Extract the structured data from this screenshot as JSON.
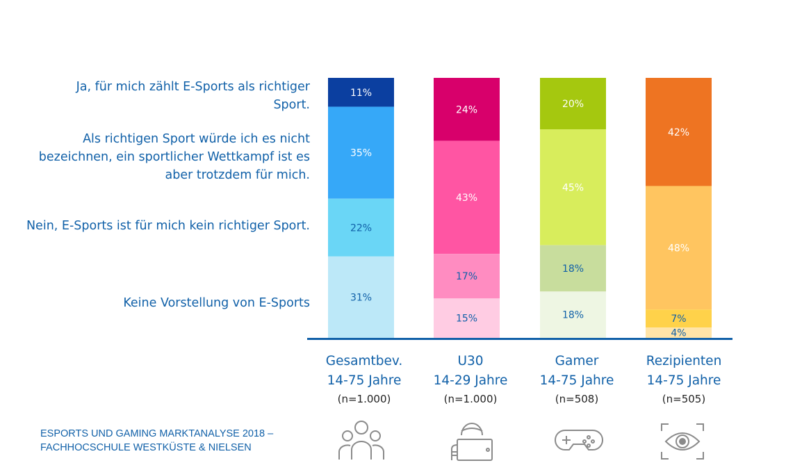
{
  "chart_data": {
    "type": "bar",
    "stacked": true,
    "ylim": [
      0,
      100
    ],
    "legend_position": "left",
    "categories": [
      {
        "name": "Gesamtbev.",
        "age": "14-75 Jahre",
        "n": "(n=1.000)"
      },
      {
        "name": "U30",
        "age": "14-29 Jahre",
        "n": "(n=1.000)"
      },
      {
        "name": "Gamer",
        "age": "14-75 Jahre",
        "n": "(n=508)"
      },
      {
        "name": "Rezipienten",
        "age": "14-75 Jahre",
        "n": "(n=505)"
      }
    ],
    "series": [
      {
        "name": "Ja, für mich zählt E-Sports als richtiger Sport.",
        "values": [
          11,
          24,
          20,
          42
        ],
        "labels": [
          "11%",
          "24%",
          "20%",
          "42%"
        ]
      },
      {
        "name": "Als richtigen Sport würde ich es nicht bezeichnen, ein sportlicher Wettkampf ist es aber trotzdem für mich.",
        "values": [
          35,
          43,
          45,
          48
        ],
        "labels": [
          "35%",
          "43%",
          "45%",
          "48%"
        ]
      },
      {
        "name": "Nein, E-Sports ist für mich kein richtiger Sport.",
        "values": [
          22,
          17,
          18,
          7
        ],
        "labels": [
          "22%",
          "17%",
          "18%",
          "7%"
        ]
      },
      {
        "name": "Keine Vorstellung von E-Sports",
        "values": [
          31,
          15,
          18,
          4
        ],
        "labels": [
          "31%",
          "15%",
          "18%",
          "4%"
        ]
      }
    ],
    "colors": [
      [
        "#0B3FA0",
        "#36A8F8",
        "#6AD6F6",
        "#BCE8F8"
      ],
      [
        "#D8006B",
        "#FF55A3",
        "#FF8CC1",
        "#FFCCE3"
      ],
      [
        "#A5C80F",
        "#D8ED5C",
        "#C8DD9D",
        "#EEF6E3"
      ],
      [
        "#EE7422",
        "#FFC560",
        "#FFD24A",
        "#FFE4A8"
      ]
    ],
    "label_colors": [
      [
        "#ffffff",
        "#ffffff",
        "#1060A8",
        "#1060A8"
      ],
      [
        "#ffffff",
        "#ffffff",
        "#1060A8",
        "#1060A8"
      ],
      [
        "#ffffff",
        "#ffffff",
        "#1060A8",
        "#1060A8"
      ],
      [
        "#ffffff",
        "#ffffff",
        "#1060A8",
        "#1060A8"
      ]
    ]
  },
  "legend_labels": {
    "s0": [
      "Ja, für mich zählt E-Sports als richtiger",
      "Sport."
    ],
    "s1": [
      "Als richtigen Sport würde ich es nicht",
      "bezeichnen, ein sportlicher Wettkampf ist es",
      "aber trotzdem für mich."
    ],
    "s2": [
      "Nein, E-Sports ist für mich kein richtiger Sport."
    ],
    "s3": [
      "Keine Vorstellung von E-Sports"
    ]
  },
  "source": [
    "ESPORTS UND GAMING MARKTANALYSE 2018 –",
    "FACHHOCSCHULE WESTKÜSTE & NIELSEN"
  ],
  "icons": [
    "group-icon",
    "tablet-user-icon",
    "gamepad-icon",
    "eye-icon"
  ],
  "axis_color": "#1060A8"
}
